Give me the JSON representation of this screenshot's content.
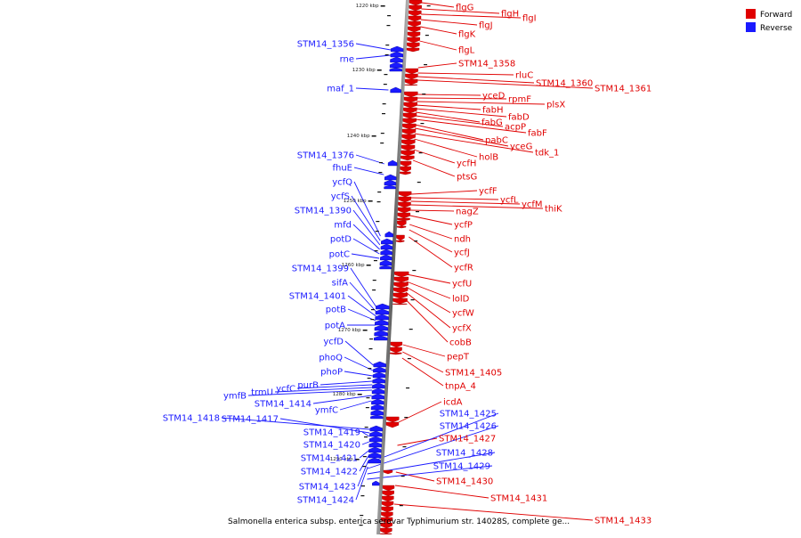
{
  "legend": [
    {
      "label": "Forward",
      "color": "#e00000"
    },
    {
      "label": "Reverse",
      "color": "#1a1aff"
    }
  ],
  "caption": "Salmonella enterica subsp. enterica serovar Typhimurium str. 14028S, complete ge...",
  "ticks": [
    "1220 kbp",
    "1230 kbp",
    "1240 kbp",
    "1250 kbp",
    "1260 kbp",
    "1270 kbp",
    "1280 kbp",
    "1290 kbp"
  ],
  "forward_genes": [
    "flgG",
    "flgH",
    "flgI",
    "flgJ",
    "flgK",
    "flgL",
    "STM14_1358",
    "rluC",
    "STM14_1360",
    "STM14_1361",
    "yceD",
    "rpmF",
    "plsX",
    "fabH",
    "fabD",
    "fabG",
    "acpP",
    "fabF",
    "pabC",
    "yceG",
    "tdk_1",
    "holB",
    "ycfH",
    "ptsG",
    "ycfF",
    "ycfL",
    "ycfM",
    "thiK",
    "nagZ",
    "ycfP",
    "ndh",
    "ycfJ",
    "ycfR",
    "ycfU",
    "lolD",
    "ycfW",
    "ycfX",
    "cobB",
    "pepT",
    "STM14_1405",
    "tnpA_4",
    "icdA",
    "STM14_1427",
    "STM14_1430",
    "STM14_1431",
    "STM14_1433"
  ],
  "reverse_genes": [
    "STM14_1356",
    "rne",
    "maf_1",
    "STM14_1376",
    "fhuE",
    "ycfQ",
    "ycfS",
    "STM14_1390",
    "mfd",
    "potD",
    "potC",
    "STM14_1399",
    "sifA",
    "STM14_1401",
    "potB",
    "potA",
    "ycfD",
    "phoQ",
    "phoP",
    "purB",
    "ycfC",
    "trmU",
    "ymfB",
    "STM14_1414",
    "ymfC",
    "STM14_1418",
    "STM14_1417",
    "STM14_1419",
    "STM14_1420",
    "STM14_1421",
    "STM14_1422",
    "STM14_1423",
    "STM14_1424",
    "STM14_1425",
    "STM14_1426",
    "STM14_1428",
    "STM14_1429"
  ]
}
